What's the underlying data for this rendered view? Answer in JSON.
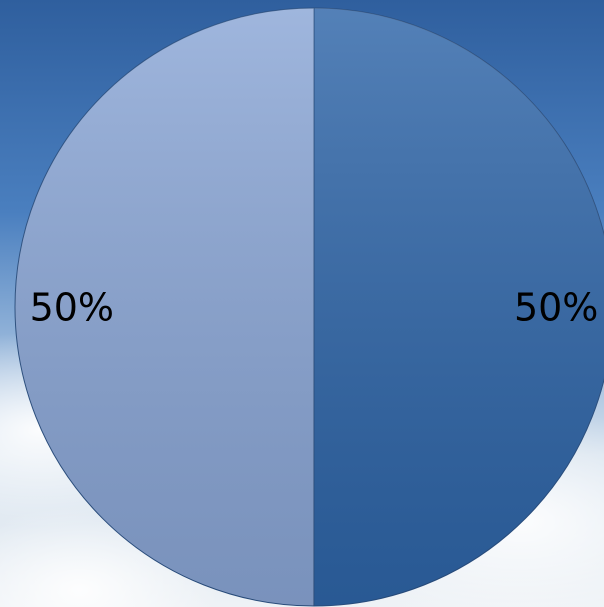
{
  "chart_data": {
    "type": "pie",
    "values": [
      50,
      50
    ],
    "value_labels": [
      "50%",
      "50%"
    ],
    "colors": [
      "#2e65a8",
      "#8aa6d6"
    ]
  }
}
